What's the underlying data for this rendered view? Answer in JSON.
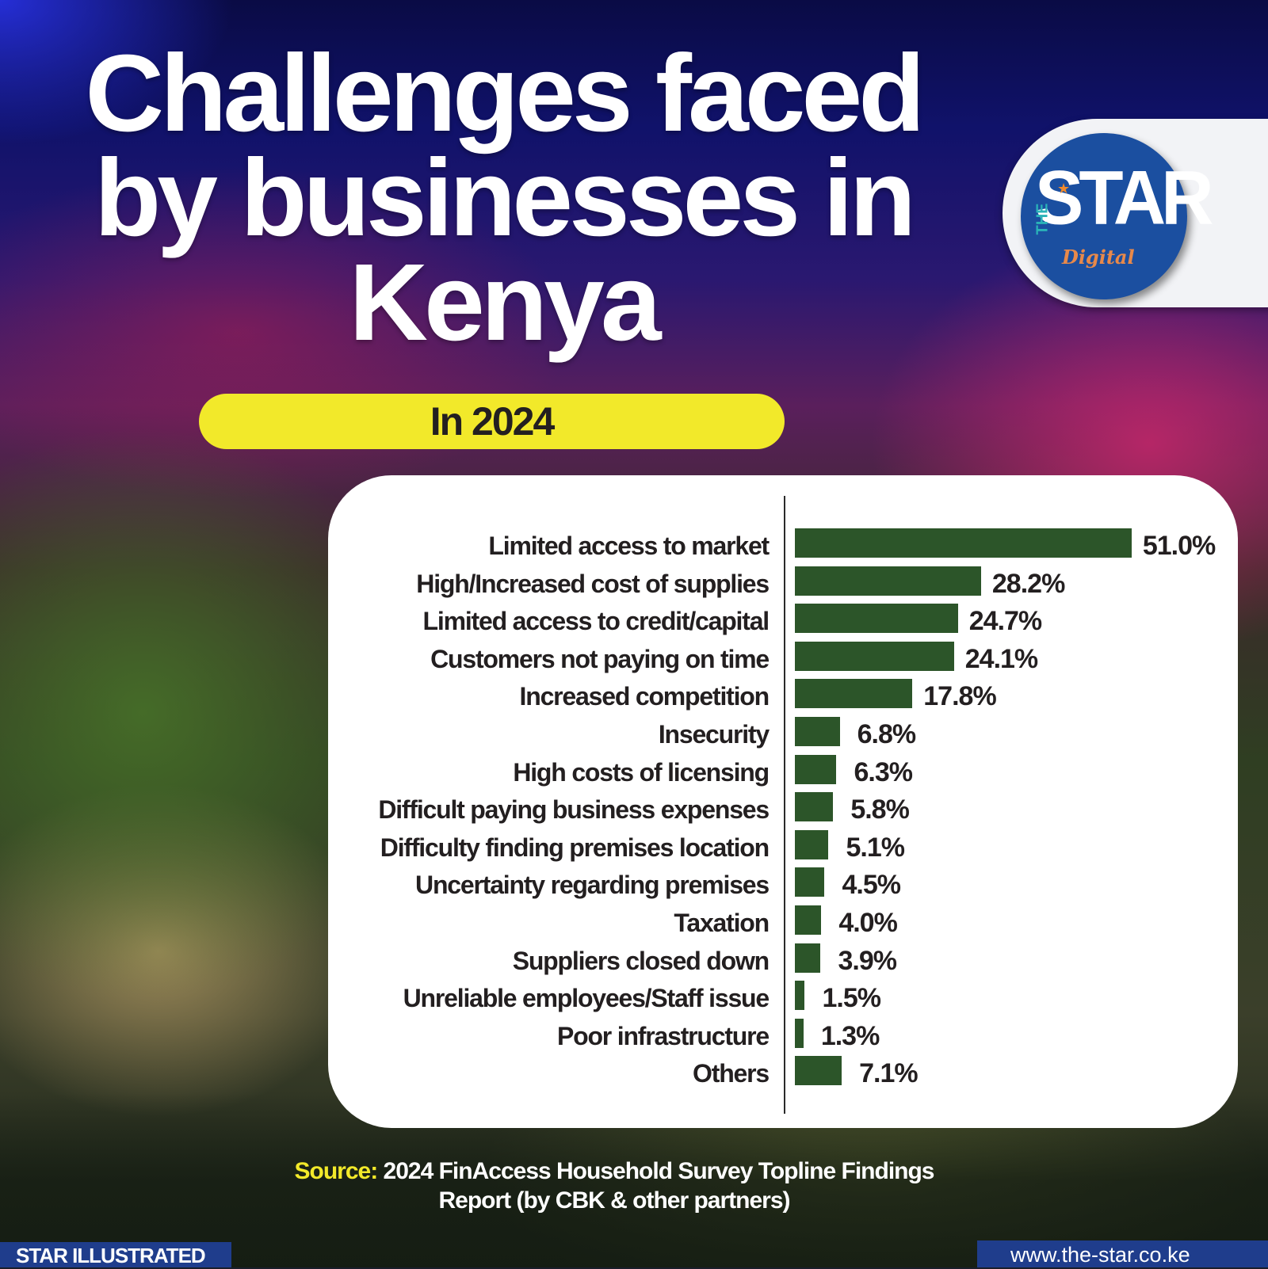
{
  "header": {
    "title_lines": [
      "Challenges faced",
      "by businesses in",
      "Kenya"
    ],
    "subtitle": "In 2024"
  },
  "logo": {
    "the": "THE",
    "star": "STAR",
    "digital": "Digital"
  },
  "chart_data": {
    "type": "bar",
    "orientation": "horizontal",
    "title": "Challenges faced by businesses in Kenya",
    "subtitle": "In 2024",
    "xlabel": "",
    "ylabel": "",
    "unit": "%",
    "grid": false,
    "legend": null,
    "categories": [
      "Limited access to market",
      "High/Increased cost of supplies",
      "Limited access to credit/capital",
      "Customers not paying on time",
      "Increased competition",
      "Insecurity",
      "High costs of licensing",
      "Difficult paying business expenses",
      "Difficulty finding premises location",
      "Uncertainty regarding premises",
      "Taxation",
      "Suppliers closed down",
      "Unreliable employees/Staff issue",
      "Poor infrastructure",
      "Others"
    ],
    "values": [
      51.0,
      28.2,
      24.7,
      24.1,
      17.8,
      6.8,
      6.3,
      5.8,
      5.1,
      4.5,
      4.0,
      3.9,
      1.5,
      1.3,
      7.1
    ],
    "value_labels": [
      "51.0%",
      "28.2%",
      "24.7%",
      "24.1%",
      "17.8%",
      "6.8%",
      "6.3%",
      "5.8%",
      "5.1%",
      "4.5%",
      "4.0%",
      "3.9%",
      "1.5%",
      "1.3%",
      "7.1%"
    ],
    "bar_color": "#2c5529"
  },
  "source": {
    "label": "Source:",
    "text_line1": " 2024 FinAccess Household Survey Topline  Findings",
    "text_line2": "Report (by CBK & other partners)"
  },
  "footer": {
    "left": "STAR ILLUSTRATED",
    "right": "www.the-star.co.ke"
  },
  "colors": {
    "accent_yellow": "#f2e92a",
    "bar_green": "#2c5529",
    "brand_blue": "#1f3d8c",
    "logo_orange": "#e8894a"
  }
}
